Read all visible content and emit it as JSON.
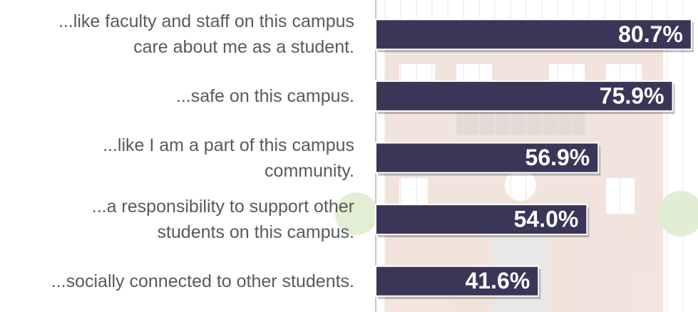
{
  "chart_data": {
    "type": "bar",
    "orientation": "horizontal",
    "categories": [
      "...like faculty and staff on this campus\ncare about me as a student.",
      "...safe on this campus.",
      "...like I am a part of this campus\ncommunity.",
      "...a responsibility to support other\nstudents on this campus.",
      "...socially connected to other students."
    ],
    "values": [
      80.7,
      75.9,
      56.9,
      54.0,
      41.6
    ],
    "value_labels": [
      "80.7%",
      "75.9%",
      "56.9%",
      "54.0%",
      "41.6%"
    ],
    "color": "#3b3558",
    "xlim": [
      0,
      82
    ]
  }
}
